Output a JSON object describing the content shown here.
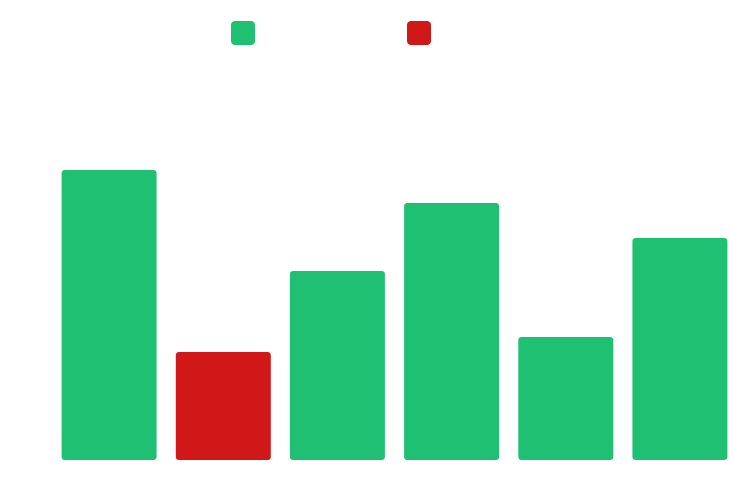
{
  "chart_data": {
    "type": "bar",
    "categories": [
      "",
      "",
      "",
      "",
      "",
      ""
    ],
    "values": [
      290,
      108,
      189,
      257,
      123,
      222
    ],
    "ylim": [
      0,
      330
    ],
    "grid": false,
    "legend_position": "top-center",
    "series": [
      {
        "color": "#20c073",
        "values": [
          290,
          null,
          189,
          257,
          123,
          222
        ]
      },
      {
        "color": "#d01818",
        "values": [
          null,
          108,
          null,
          null,
          null,
          null
        ]
      }
    ],
    "colors": {
      "increase": "#20c073",
      "decrease": "#d01818",
      "background": "#ffffff"
    }
  }
}
